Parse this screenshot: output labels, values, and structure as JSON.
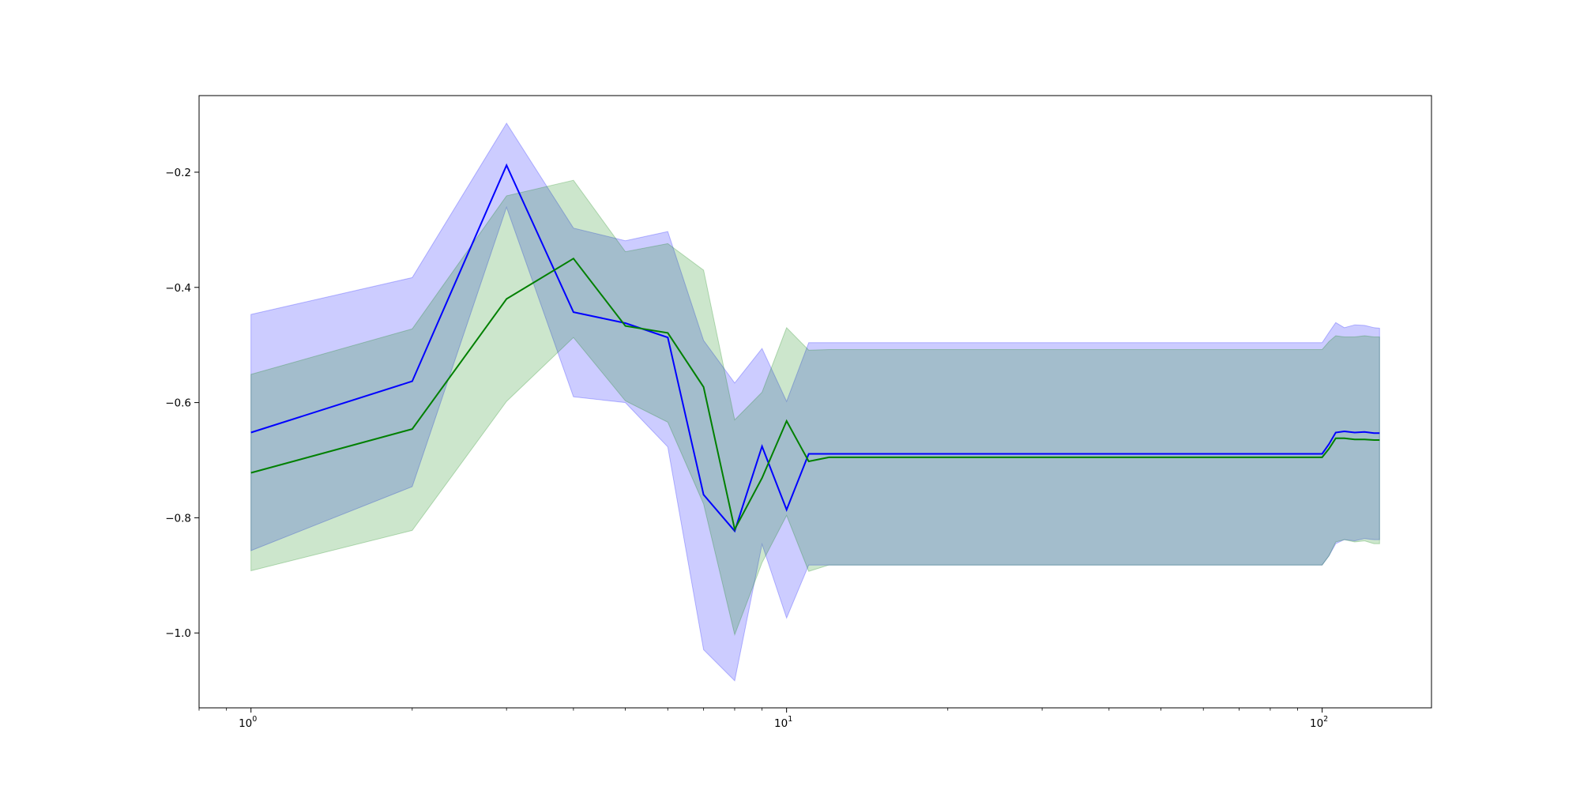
{
  "chart_data": {
    "type": "line",
    "title": "",
    "xlabel": "",
    "ylabel": "",
    "xscale": "log",
    "xlim": [
      0.8,
      160
    ],
    "ylim": [
      -1.13,
      -0.067
    ],
    "grid": false,
    "legend": "none",
    "x_ticks": [
      {
        "base": "10",
        "exp": "0",
        "value": 1
      },
      {
        "base": "10",
        "exp": "1",
        "value": 10
      },
      {
        "base": "10",
        "exp": "2",
        "value": 100
      }
    ],
    "y_ticks": [
      {
        "label": "−0.2",
        "value": -0.2
      },
      {
        "label": "−0.4",
        "value": -0.4
      },
      {
        "label": "−0.6",
        "value": -0.6
      },
      {
        "label": "−0.8",
        "value": -0.8
      },
      {
        "label": "−1.0",
        "value": -1.0
      }
    ],
    "x": [
      1,
      2,
      3,
      4,
      5,
      6,
      7,
      8,
      9,
      10,
      11,
      12,
      20,
      40,
      80,
      100,
      103,
      106,
      110,
      115,
      120,
      125,
      128
    ],
    "series": [
      {
        "color": "#0000ff",
        "fill_color": "#0000ff",
        "fill_opacity": 0.2,
        "values": [
          -0.652,
          -0.563,
          -0.188,
          -0.443,
          -0.462,
          -0.487,
          -0.76,
          -0.823,
          -0.676,
          -0.786,
          -0.689,
          -0.689,
          -0.689,
          -0.689,
          -0.689,
          -0.689,
          -0.672,
          -0.652,
          -0.65,
          -0.652,
          -0.651,
          -0.653,
          -0.653
        ],
        "upper": [
          -0.447,
          -0.383,
          -0.115,
          -0.297,
          -0.319,
          -0.303,
          -0.492,
          -0.566,
          -0.506,
          -0.598,
          -0.496,
          -0.496,
          -0.496,
          -0.496,
          -0.496,
          -0.496,
          -0.478,
          -0.461,
          -0.47,
          -0.465,
          -0.466,
          -0.47,
          -0.471
        ],
        "lower": [
          -0.857,
          -0.746,
          -0.261,
          -0.59,
          -0.6,
          -0.677,
          -1.029,
          -1.083,
          -0.846,
          -0.974,
          -0.882,
          -0.882,
          -0.882,
          -0.882,
          -0.882,
          -0.882,
          -0.866,
          -0.845,
          -0.838,
          -0.84,
          -0.836,
          -0.838,
          -0.838
        ]
      },
      {
        "color": "#008000",
        "fill_color": "#008000",
        "fill_opacity": 0.2,
        "values": [
          -0.722,
          -0.646,
          -0.42,
          -0.35,
          -0.467,
          -0.479,
          -0.573,
          -0.82,
          -0.731,
          -0.632,
          -0.702,
          -0.695,
          -0.695,
          -0.695,
          -0.695,
          -0.695,
          -0.68,
          -0.662,
          -0.662,
          -0.664,
          -0.664,
          -0.665,
          -0.665
        ],
        "upper": [
          -0.551,
          -0.472,
          -0.241,
          -0.214,
          -0.338,
          -0.324,
          -0.37,
          -0.63,
          -0.582,
          -0.47,
          -0.509,
          -0.508,
          -0.508,
          -0.508,
          -0.508,
          -0.508,
          -0.494,
          -0.484,
          -0.486,
          -0.486,
          -0.484,
          -0.486,
          -0.486
        ],
        "lower": [
          -0.892,
          -0.822,
          -0.598,
          -0.487,
          -0.597,
          -0.634,
          -0.776,
          -1.003,
          -0.878,
          -0.796,
          -0.893,
          -0.882,
          -0.882,
          -0.882,
          -0.882,
          -0.882,
          -0.866,
          -0.842,
          -0.838,
          -0.842,
          -0.84,
          -0.845,
          -0.845
        ]
      }
    ]
  }
}
